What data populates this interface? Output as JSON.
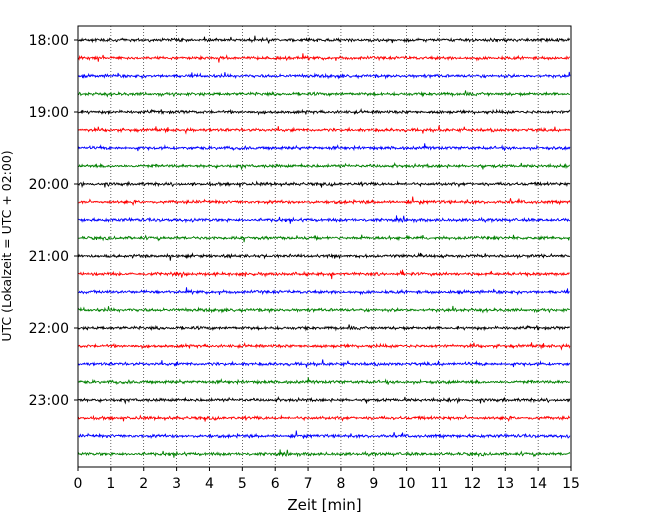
{
  "chart_data": {
    "type": "line",
    "title": "",
    "xlabel": "Zeit  [min]",
    "ylabel": "UTC (Lokalzeit = UTC + 02:00)",
    "xlim": [
      0,
      15
    ],
    "x_ticks": [
      "0",
      "1",
      "2",
      "3",
      "4",
      "5",
      "6",
      "7",
      "8",
      "9",
      "10",
      "11",
      "12",
      "13",
      "14",
      "15"
    ],
    "y_ticks": [
      "18:00",
      "19:00",
      "20:00",
      "21:00",
      "22:00",
      "23:00"
    ],
    "grid": "vertical dotted",
    "trace_colors": [
      "#000000",
      "#ff0000",
      "#0000ff",
      "#008000"
    ],
    "traces_start": "18:00",
    "traces_interval_min": 15,
    "traces_count": 24,
    "trace_description": "24 stacked seismograph traces, one per 15-minute window from 18:00 to 23:45 UTC, each showing low-amplitude noise"
  }
}
